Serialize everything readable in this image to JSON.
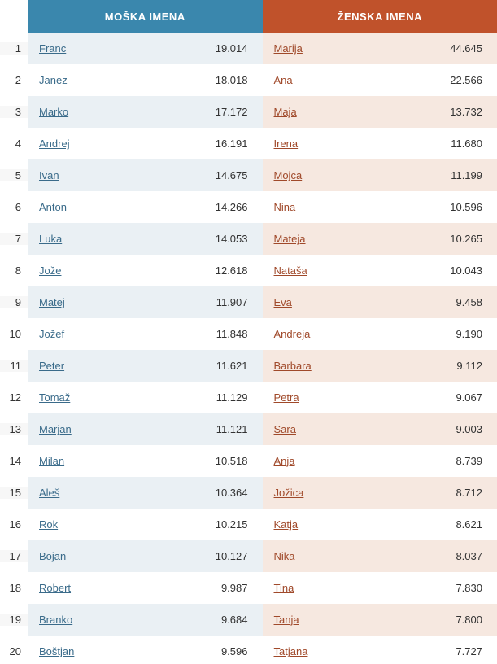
{
  "headers": {
    "male": "MOŠKA IMENA",
    "female": "ŽENSKA IMENA"
  },
  "colors": {
    "male_header_bg": "#3a87ad",
    "female_header_bg": "#c0522b",
    "male_row_odd_bg": "#eaf0f4",
    "female_row_odd_bg": "#f6e8e0",
    "row_even_bg": "#ffffff",
    "male_link_color": "#3a6b8a",
    "female_link_color": "#a0492a",
    "text_color": "#333333"
  },
  "rows": [
    {
      "rank": "1",
      "male_name": "Franc",
      "male_count": "19.014",
      "female_name": "Marija",
      "female_count": "44.645"
    },
    {
      "rank": "2",
      "male_name": "Janez",
      "male_count": "18.018",
      "female_name": "Ana",
      "female_count": "22.566"
    },
    {
      "rank": "3",
      "male_name": "Marko",
      "male_count": "17.172",
      "female_name": "Maja",
      "female_count": "13.732"
    },
    {
      "rank": "4",
      "male_name": "Andrej",
      "male_count": "16.191",
      "female_name": "Irena",
      "female_count": "11.680"
    },
    {
      "rank": "5",
      "male_name": "Ivan",
      "male_count": "14.675",
      "female_name": "Mojca",
      "female_count": "11.199"
    },
    {
      "rank": "6",
      "male_name": "Anton",
      "male_count": "14.266",
      "female_name": "Nina",
      "female_count": "10.596"
    },
    {
      "rank": "7",
      "male_name": "Luka",
      "male_count": "14.053",
      "female_name": "Mateja",
      "female_count": "10.265"
    },
    {
      "rank": "8",
      "male_name": "Jože",
      "male_count": "12.618",
      "female_name": "Nataša",
      "female_count": "10.043"
    },
    {
      "rank": "9",
      "male_name": "Matej",
      "male_count": "11.907",
      "female_name": "Eva",
      "female_count": "9.458"
    },
    {
      "rank": "10",
      "male_name": "Jožef",
      "male_count": "11.848",
      "female_name": "Andreja",
      "female_count": "9.190"
    },
    {
      "rank": "11",
      "male_name": "Peter",
      "male_count": "11.621",
      "female_name": "Barbara",
      "female_count": "9.112"
    },
    {
      "rank": "12",
      "male_name": "Tomaž",
      "male_count": "11.129",
      "female_name": "Petra",
      "female_count": "9.067"
    },
    {
      "rank": "13",
      "male_name": "Marjan",
      "male_count": "11.121",
      "female_name": "Sara",
      "female_count": "9.003"
    },
    {
      "rank": "14",
      "male_name": "Milan",
      "male_count": "10.518",
      "female_name": "Anja",
      "female_count": "8.739"
    },
    {
      "rank": "15",
      "male_name": "Aleš",
      "male_count": "10.364",
      "female_name": "Jožica",
      "female_count": "8.712"
    },
    {
      "rank": "16",
      "male_name": "Rok",
      "male_count": "10.215",
      "female_name": "Katja",
      "female_count": "8.621"
    },
    {
      "rank": "17",
      "male_name": "Bojan",
      "male_count": "10.127",
      "female_name": "Nika",
      "female_count": "8.037"
    },
    {
      "rank": "18",
      "male_name": "Robert",
      "male_count": "9.987",
      "female_name": "Tina",
      "female_count": "7.830"
    },
    {
      "rank": "19",
      "male_name": "Branko",
      "male_count": "9.684",
      "female_name": "Tanja",
      "female_count": "7.800"
    },
    {
      "rank": "20",
      "male_name": "Boštjan",
      "male_count": "9.596",
      "female_name": "Tatjana",
      "female_count": "7.727"
    }
  ]
}
